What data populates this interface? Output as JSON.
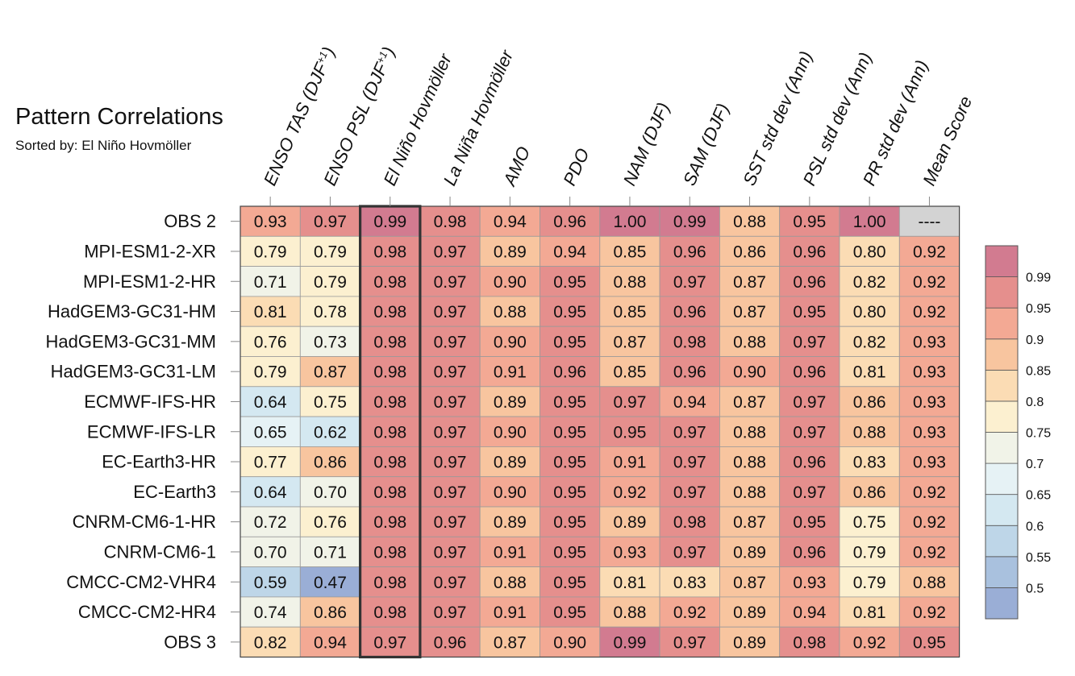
{
  "chart_data": {
    "type": "heatmap",
    "title": "Pattern Correlations",
    "subtitle": "Sorted by: El Niño Hovmöller",
    "columns": [
      "ENSO TAS (DJF+1)",
      "ENSO PSL (DJF+1)",
      "El Niño Hovmöller",
      "La Niña Hovmöller",
      "AMO",
      "PDO",
      "NAM (DJF)",
      "SAM (DJF)",
      "SST std dev (Ann)",
      "PSL std dev (Ann)",
      "PR std dev (Ann)",
      "Mean Score"
    ],
    "highlighted_column": "El Niño Hovmöller",
    "rows": [
      {
        "name": "OBS 2",
        "values": [
          "0.93",
          "0.97",
          "0.99",
          "0.98",
          "0.94",
          "0.96",
          "1.00",
          "0.99",
          "0.88",
          "0.95",
          "1.00",
          "----"
        ]
      },
      {
        "name": "MPI-ESM1-2-XR",
        "values": [
          "0.79",
          "0.79",
          "0.98",
          "0.97",
          "0.89",
          "0.94",
          "0.85",
          "0.96",
          "0.86",
          "0.96",
          "0.80",
          "0.92"
        ]
      },
      {
        "name": "MPI-ESM1-2-HR",
        "values": [
          "0.71",
          "0.79",
          "0.98",
          "0.97",
          "0.90",
          "0.95",
          "0.88",
          "0.97",
          "0.87",
          "0.96",
          "0.82",
          "0.92"
        ]
      },
      {
        "name": "HadGEM3-GC31-HM",
        "values": [
          "0.81",
          "0.78",
          "0.98",
          "0.97",
          "0.88",
          "0.95",
          "0.85",
          "0.96",
          "0.87",
          "0.95",
          "0.80",
          "0.92"
        ]
      },
      {
        "name": "HadGEM3-GC31-MM",
        "values": [
          "0.76",
          "0.73",
          "0.98",
          "0.97",
          "0.90",
          "0.95",
          "0.87",
          "0.98",
          "0.88",
          "0.97",
          "0.82",
          "0.93"
        ]
      },
      {
        "name": "HadGEM3-GC31-LM",
        "values": [
          "0.79",
          "0.87",
          "0.98",
          "0.97",
          "0.91",
          "0.96",
          "0.85",
          "0.96",
          "0.90",
          "0.96",
          "0.81",
          "0.93"
        ]
      },
      {
        "name": "ECMWF-IFS-HR",
        "values": [
          "0.64",
          "0.75",
          "0.98",
          "0.97",
          "0.89",
          "0.95",
          "0.97",
          "0.94",
          "0.87",
          "0.97",
          "0.86",
          "0.93"
        ]
      },
      {
        "name": "ECMWF-IFS-LR",
        "values": [
          "0.65",
          "0.62",
          "0.98",
          "0.97",
          "0.90",
          "0.95",
          "0.95",
          "0.97",
          "0.88",
          "0.97",
          "0.88",
          "0.93"
        ]
      },
      {
        "name": "EC-Earth3-HR",
        "values": [
          "0.77",
          "0.86",
          "0.98",
          "0.97",
          "0.89",
          "0.95",
          "0.91",
          "0.97",
          "0.88",
          "0.96",
          "0.83",
          "0.93"
        ]
      },
      {
        "name": "EC-Earth3",
        "values": [
          "0.64",
          "0.70",
          "0.98",
          "0.97",
          "0.90",
          "0.95",
          "0.92",
          "0.97",
          "0.88",
          "0.97",
          "0.86",
          "0.92"
        ]
      },
      {
        "name": "CNRM-CM6-1-HR",
        "values": [
          "0.72",
          "0.76",
          "0.98",
          "0.97",
          "0.89",
          "0.95",
          "0.89",
          "0.98",
          "0.87",
          "0.95",
          "0.75",
          "0.92"
        ]
      },
      {
        "name": "CNRM-CM6-1",
        "values": [
          "0.70",
          "0.71",
          "0.98",
          "0.97",
          "0.91",
          "0.95",
          "0.93",
          "0.97",
          "0.89",
          "0.96",
          "0.79",
          "0.92"
        ]
      },
      {
        "name": "CMCC-CM2-VHR4",
        "values": [
          "0.59",
          "0.47",
          "0.98",
          "0.97",
          "0.88",
          "0.95",
          "0.81",
          "0.83",
          "0.87",
          "0.93",
          "0.79",
          "0.88"
        ]
      },
      {
        "name": "CMCC-CM2-HR4",
        "values": [
          "0.74",
          "0.86",
          "0.98",
          "0.97",
          "0.91",
          "0.95",
          "0.88",
          "0.92",
          "0.89",
          "0.94",
          "0.81",
          "0.92"
        ]
      },
      {
        "name": "OBS 3",
        "values": [
          "0.82",
          "0.94",
          "0.97",
          "0.96",
          "0.87",
          "0.90",
          "0.99",
          "0.97",
          "0.89",
          "0.98",
          "0.92",
          "0.95"
        ]
      }
    ],
    "colorbar": {
      "boundaries": [
        0.5,
        0.55,
        0.6,
        0.65,
        0.7,
        0.75,
        0.8,
        0.85,
        0.9,
        0.95,
        0.99
      ],
      "tick_labels": [
        "0.5",
        "0.55",
        "0.6",
        "0.65",
        "0.7",
        "0.75",
        "0.8",
        "0.85",
        "0.9",
        "0.95",
        "0.99"
      ],
      "colors": [
        "#9aaed6",
        "#a9c1de",
        "#bed6e8",
        "#d4e8f1",
        "#e6f2f5",
        "#f1f3e8",
        "#fcf0d0",
        "#fbdcb4",
        "#f8c59f",
        "#f3a994",
        "#e58f8d",
        "#d27b90"
      ],
      "missing_color": "#d3d3d3"
    }
  }
}
